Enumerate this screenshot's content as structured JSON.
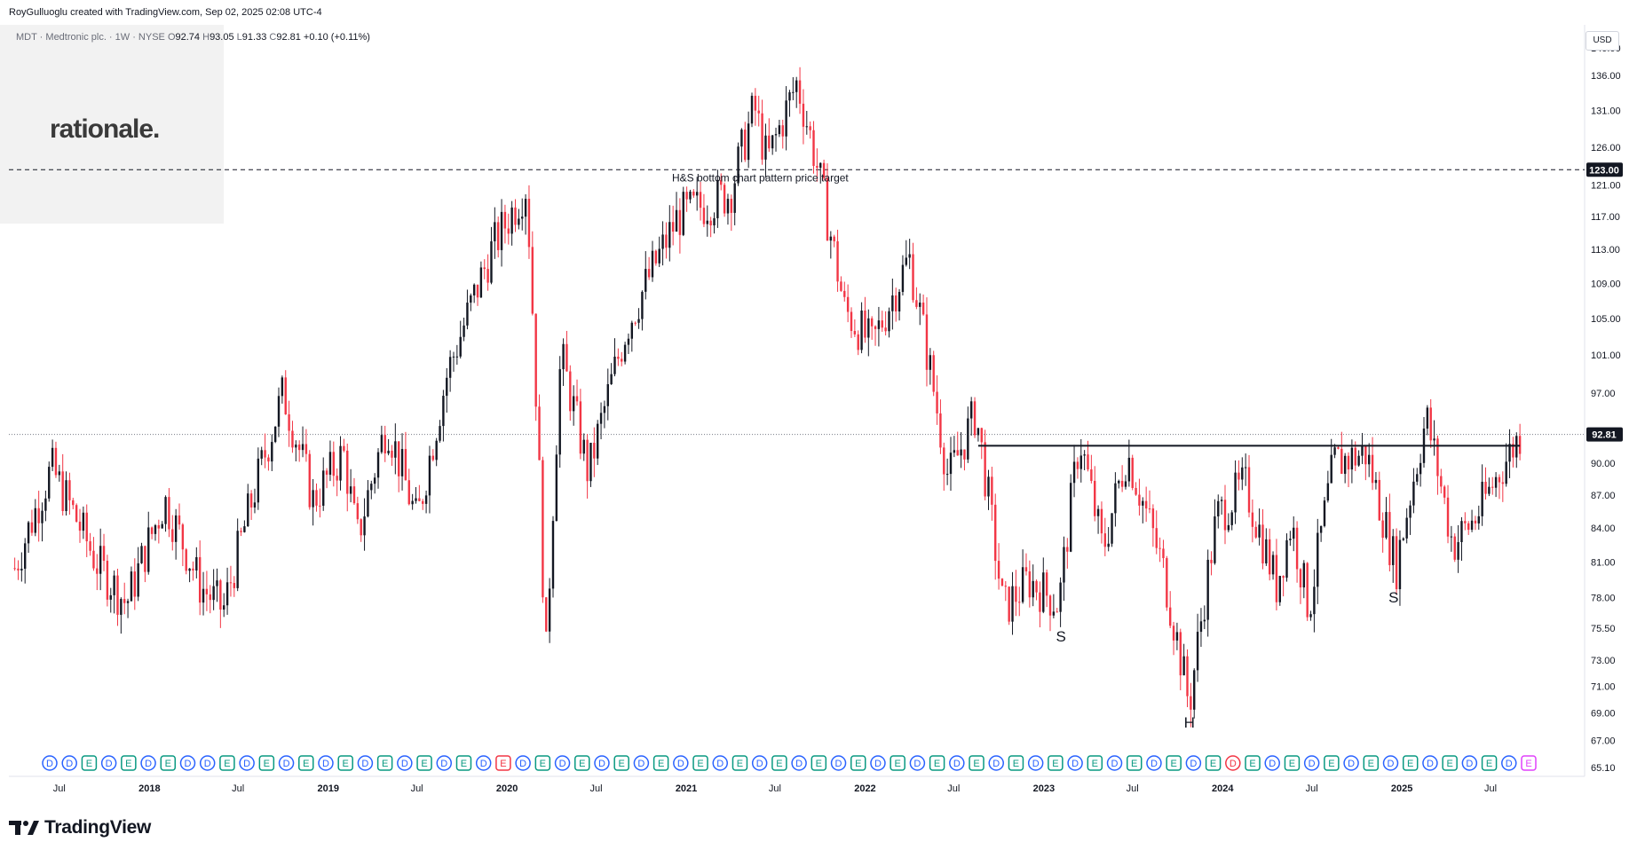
{
  "header": {
    "attribution": "RoyGulluoglu created with TradingView.com, Sep 02, 2025 02:08 UTC-4"
  },
  "ticker": {
    "name": "MDT · Medtronic plc. · 1W · NYSE",
    "o_label": "O",
    "o_value": "92.74",
    "h_label": "H",
    "h_value": "93.05",
    "l_label": "L",
    "l_value": "91.33",
    "c_label": "C",
    "c_value": "92.81",
    "change": "+0.10 (+0.11%)"
  },
  "watermark": "rationale.",
  "currency_button": "USD",
  "brand": "TradingView",
  "colors": {
    "up": "#131722",
    "down": "#f23645",
    "grid_axis": "#787b86",
    "badge_dividend": "#2962ff",
    "badge_earnings": "#089981",
    "badge_earnings_miss": "#f23645",
    "badge_future": "#e040fb"
  },
  "chart_data": {
    "type": "candlestick",
    "symbol": "MDT",
    "interval": "1W",
    "ylim": [
      64.5,
      143.5
    ],
    "y_scale": "log",
    "y_ticks": [
      "140.00",
      "136.00",
      "131.00",
      "126.00",
      "121.00",
      "117.00",
      "113.00",
      "109.00",
      "105.00",
      "101.00",
      "97.00",
      "90.00",
      "87.00",
      "84.00",
      "81.00",
      "78.00",
      "75.50",
      "73.00",
      "71.00",
      "69.00",
      "67.00",
      "65.10"
    ],
    "x_ticks": [
      "Jul",
      "2018",
      "Jul",
      "2019",
      "Jul",
      "2020",
      "Jul",
      "2021",
      "Jul",
      "2022",
      "Jul",
      "2023",
      "Jul",
      "2024",
      "Jul",
      "2025",
      "Jul"
    ],
    "price_badges": [
      {
        "label": "123.00",
        "value": 123.0
      },
      {
        "label": "92.81",
        "value": 92.81
      }
    ],
    "price_path": [
      [
        "2017-04-01",
        80.5
      ],
      [
        "2017-06-15",
        89.5
      ],
      [
        "2017-09-15",
        81
      ],
      [
        "2017-11-15",
        77.5
      ],
      [
        "2018-02-01",
        86.5
      ],
      [
        "2018-04-15",
        79
      ],
      [
        "2018-06-01",
        77
      ],
      [
        "2018-08-01",
        87
      ],
      [
        "2018-10-01",
        97
      ],
      [
        "2018-12-01",
        86.5
      ],
      [
        "2019-02-01",
        91
      ],
      [
        "2019-03-01",
        83
      ],
      [
        "2019-05-01",
        94
      ],
      [
        "2019-07-01",
        84.5
      ],
      [
        "2019-09-01",
        99
      ],
      [
        "2019-12-01",
        113
      ],
      [
        "2020-02-10",
        121
      ],
      [
        "2020-03-20",
        72.5
      ],
      [
        "2020-04-20",
        101
      ],
      [
        "2020-06-15",
        89
      ],
      [
        "2020-09-01",
        104
      ],
      [
        "2020-12-15",
        117
      ],
      [
        "2021-04-01",
        120
      ],
      [
        "2021-05-20",
        131.5
      ],
      [
        "2021-06-15",
        124
      ],
      [
        "2021-08-15",
        135
      ],
      [
        "2021-09-20",
        125
      ],
      [
        "2021-11-20",
        106
      ],
      [
        "2022-01-15",
        102
      ],
      [
        "2022-04-01",
        112
      ],
      [
        "2022-06-20",
        88.5
      ],
      [
        "2022-08-15",
        95
      ],
      [
        "2022-10-10",
        77
      ],
      [
        "2022-12-01",
        79.5
      ],
      [
        "2023-02-01",
        77.5
      ],
      [
        "2023-03-15",
        92.5
      ],
      [
        "2023-05-01",
        82
      ],
      [
        "2023-06-20",
        91
      ],
      [
        "2023-09-01",
        80.5
      ],
      [
        "2023-10-25",
        69.5
      ],
      [
        "2023-12-20",
        85
      ],
      [
        "2024-02-15",
        88
      ],
      [
        "2024-04-20",
        79
      ],
      [
        "2024-05-20",
        84.5
      ],
      [
        "2024-06-25",
        77
      ],
      [
        "2024-08-15",
        90
      ],
      [
        "2024-10-20",
        91
      ],
      [
        "2024-12-20",
        80.5
      ],
      [
        "2025-02-20",
        94.5
      ],
      [
        "2025-04-15",
        82.5
      ],
      [
        "2025-06-01",
        85
      ],
      [
        "2025-08-30",
        92.81
      ]
    ],
    "annotations": [
      {
        "text": "H&S bottom chart pattern price target",
        "value": 123.0,
        "date": "2021-06-01"
      },
      {
        "text": "S",
        "value": 75.3,
        "date": "2023-02-05"
      },
      {
        "text": "H",
        "value": 68.7,
        "date": "2023-10-25"
      },
      {
        "text": "S",
        "value": 78.5,
        "date": "2024-12-15"
      }
    ],
    "neckline": {
      "value": 91.7,
      "start": "2022-08-20",
      "end": "2025-08-30"
    },
    "price_target_line": {
      "value": 123.0
    },
    "current_price_line": {
      "value": 92.81
    },
    "event_badges": [
      "D",
      "D",
      "E",
      "D",
      "E",
      "D",
      "E",
      "D",
      "D",
      "E",
      "D",
      "E",
      "D",
      "E",
      "D",
      "E",
      "D",
      "E",
      "D",
      "E",
      "D",
      "E",
      "D",
      "E",
      "D",
      "E",
      "D",
      "E",
      "D",
      "E",
      "D",
      "E",
      "D",
      "E",
      "D",
      "E",
      "D",
      "E",
      "D",
      "E",
      "D",
      "E",
      "D",
      "E",
      "D",
      "E",
      "D",
      "E",
      "D",
      "E",
      "D",
      "E",
      "D",
      "E",
      "D",
      "E",
      "D",
      "E",
      "D",
      "E",
      "D",
      "E",
      "D",
      "E",
      "D",
      "E",
      "D",
      "E",
      "D",
      "E",
      "D",
      "E",
      "D",
      "E",
      "D",
      "E"
    ]
  }
}
